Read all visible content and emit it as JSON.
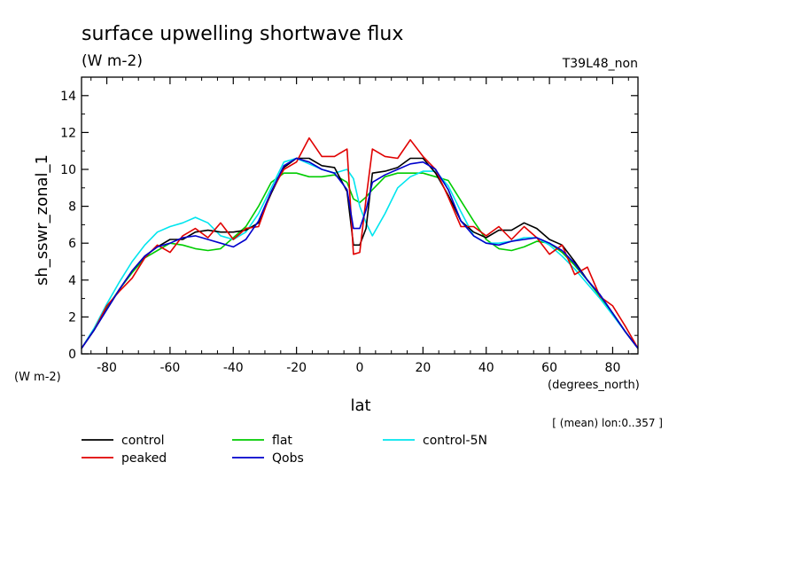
{
  "header": {
    "title": "surface upwelling shortwave flux",
    "units": "(W m-2)",
    "run_id": "T39L48_non",
    "ylabel": "sh_sswr_zonal_1",
    "y_units": "(W m-2)",
    "x_units": "(degrees_north)",
    "xlabel": "lat",
    "note": "[ (mean) lon:0..357 ]"
  },
  "chart_data": {
    "type": "line",
    "title": "surface upwelling shortwave flux",
    "xlabel": "lat",
    "ylabel": "sh_sswr_zonal_1",
    "xlim": [
      -88,
      88
    ],
    "ylim": [
      0,
      15
    ],
    "xticks": [
      -80,
      -60,
      -40,
      -20,
      0,
      20,
      40,
      60,
      80
    ],
    "yticks": [
      0,
      2,
      4,
      6,
      8,
      10,
      12,
      14
    ],
    "xtick_labels": [
      "-80",
      "-60",
      "-40",
      "-20",
      "0",
      "20",
      "40",
      "60",
      "80"
    ],
    "ytick_labels": [
      "0",
      "2",
      "4",
      "6",
      "8",
      "10",
      "12",
      "14"
    ],
    "grid": false,
    "legend_position": "bottom",
    "x": [
      -88,
      -84,
      -80,
      -76,
      -72,
      -68,
      -64,
      -60,
      -56,
      -52,
      -48,
      -44,
      -40,
      -36,
      -32,
      -28,
      -24,
      -20,
      -16,
      -12,
      -8,
      -4,
      -2,
      0,
      2,
      4,
      8,
      12,
      16,
      20,
      24,
      28,
      32,
      36,
      40,
      44,
      48,
      52,
      56,
      60,
      64,
      68,
      72,
      76,
      80,
      84,
      88
    ],
    "series": [
      {
        "name": "control",
        "color": "#000000",
        "values": [
          0.3,
          1.3,
          2.4,
          3.5,
          4.5,
          5.3,
          5.8,
          6.2,
          6.2,
          6.6,
          6.7,
          6.6,
          6.6,
          6.7,
          7.1,
          8.7,
          10.1,
          10.6,
          10.6,
          10.2,
          10.1,
          8.8,
          5.9,
          5.9,
          6.8,
          9.8,
          9.9,
          10.1,
          10.6,
          10.6,
          9.8,
          8.6,
          7.2,
          6.6,
          6.3,
          6.7,
          6.7,
          7.1,
          6.8,
          6.2,
          5.9,
          5.0,
          4.0,
          3.2,
          2.2,
          1.2,
          0.3
        ]
      },
      {
        "name": "peaked",
        "color": "#e00000",
        "values": [
          0.3,
          1.3,
          2.6,
          3.4,
          4.1,
          5.2,
          5.9,
          5.5,
          6.4,
          6.8,
          6.3,
          7.1,
          6.2,
          6.8,
          6.9,
          8.8,
          10.0,
          10.4,
          11.7,
          10.7,
          10.7,
          11.1,
          5.4,
          5.5,
          8.4,
          11.1,
          10.7,
          10.6,
          11.6,
          10.7,
          10.0,
          8.5,
          6.9,
          6.9,
          6.4,
          6.9,
          6.2,
          6.9,
          6.3,
          5.4,
          5.9,
          4.3,
          4.7,
          3.1,
          2.6,
          1.5,
          0.3
        ]
      },
      {
        "name": "flat",
        "color": "#00cc00",
        "values": [
          0.3,
          1.3,
          2.5,
          3.5,
          4.4,
          5.2,
          5.6,
          6.0,
          5.9,
          5.7,
          5.6,
          5.7,
          6.3,
          6.9,
          8.0,
          9.3,
          9.8,
          9.8,
          9.6,
          9.6,
          9.7,
          9.3,
          8.4,
          8.2,
          8.5,
          8.9,
          9.6,
          9.8,
          9.8,
          9.8,
          9.6,
          9.4,
          8.3,
          7.2,
          6.2,
          5.7,
          5.6,
          5.8,
          6.1,
          6.0,
          5.5,
          4.8,
          4.0,
          3.1,
          2.2,
          1.2,
          0.3
        ]
      },
      {
        "name": "control-5N",
        "color": "#00e5ee",
        "values": [
          0.3,
          1.4,
          2.7,
          3.9,
          5.0,
          5.9,
          6.6,
          6.9,
          7.1,
          7.4,
          7.1,
          6.4,
          6.2,
          6.6,
          7.6,
          9.0,
          10.4,
          10.6,
          10.3,
          10.0,
          9.8,
          10.0,
          9.5,
          8.0,
          7.1,
          6.4,
          7.6,
          9.0,
          9.6,
          9.9,
          9.9,
          9.1,
          7.7,
          6.4,
          6.0,
          6.0,
          6.1,
          6.3,
          6.3,
          5.9,
          5.3,
          4.6,
          3.8,
          3.0,
          2.1,
          1.2,
          0.3
        ]
      },
      {
        "name": "Qobs",
        "color": "#0000cc",
        "values": [
          0.3,
          1.3,
          2.4,
          3.5,
          4.5,
          5.3,
          5.8,
          6.0,
          6.3,
          6.4,
          6.2,
          6.0,
          5.8,
          6.2,
          7.2,
          8.8,
          10.2,
          10.6,
          10.4,
          10.0,
          9.8,
          8.9,
          6.8,
          6.8,
          7.8,
          9.3,
          9.7,
          10.0,
          10.3,
          10.4,
          10.0,
          8.9,
          7.2,
          6.4,
          6.0,
          5.9,
          6.1,
          6.2,
          6.3,
          6.0,
          5.6,
          4.9,
          4.0,
          3.2,
          2.2,
          1.2,
          0.3
        ]
      }
    ]
  }
}
